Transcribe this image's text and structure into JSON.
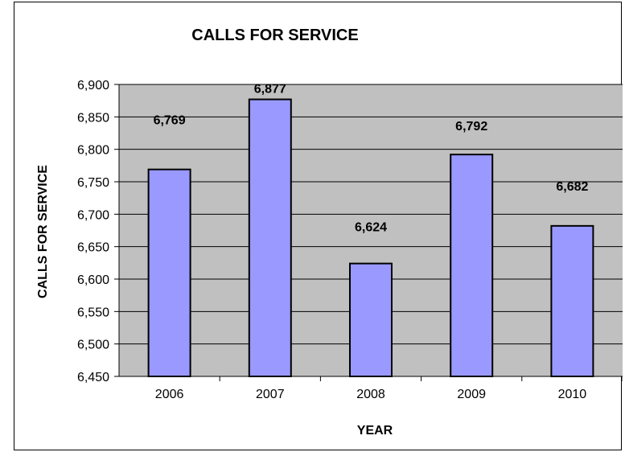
{
  "chart_data": {
    "type": "bar",
    "title": "CALLS FOR SERVICE",
    "xlabel": "YEAR",
    "ylabel": "CALLS FOR SERVICE",
    "categories": [
      "2006",
      "2007",
      "2008",
      "2009",
      "2010"
    ],
    "values": [
      6769,
      6877,
      6624,
      6792,
      6682
    ],
    "data_labels": [
      "6,769",
      "6,877",
      "6,624",
      "6,792",
      "6,682"
    ],
    "ylim": [
      6450,
      6900
    ],
    "yticks": [
      6450,
      6500,
      6550,
      6600,
      6650,
      6700,
      6750,
      6800,
      6850,
      6900
    ],
    "ytick_labels": [
      "6,450",
      "6,500",
      "6,550",
      "6,600",
      "6,650",
      "6,700",
      "6,750",
      "6,800",
      "6,850",
      "6,900"
    ],
    "grid": "horizontal",
    "legend": "none",
    "colors": {
      "bar": "#9999ff",
      "plot_background": "#c0c0c0",
      "gridline": "#000000",
      "axis": "#000000"
    }
  }
}
